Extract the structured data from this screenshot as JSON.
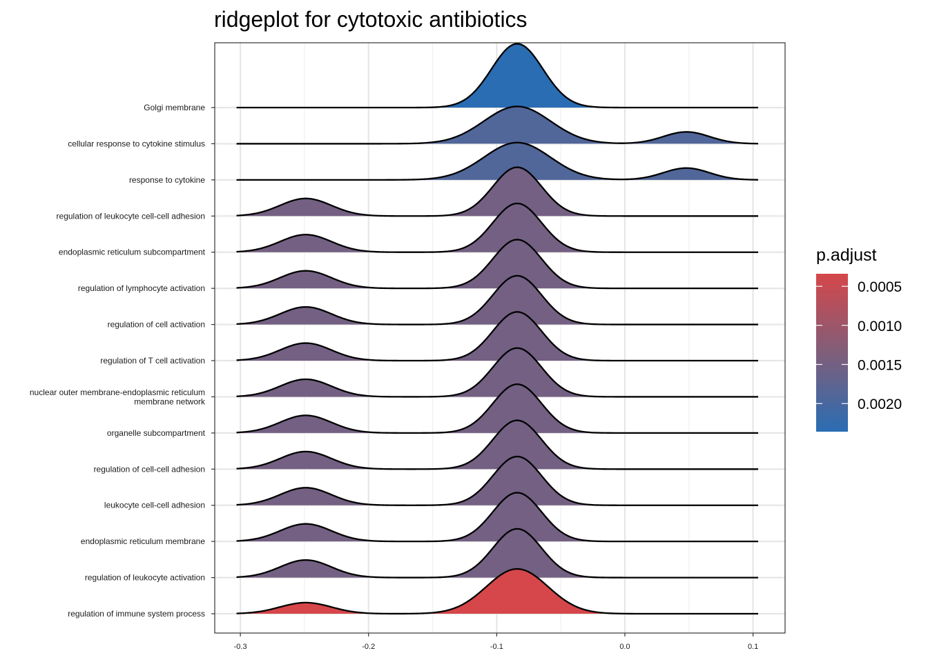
{
  "chart_data": {
    "type": "ridgeline",
    "title": "ridgeplot for cytotoxic antibiotics",
    "xlabel": "",
    "ylabel": "",
    "xlim": [
      -0.32,
      0.125
    ],
    "x_ticks": [
      "-0.3",
      "-0.2",
      "-0.1",
      "0.0",
      "0.1"
    ],
    "x_tick_values": [
      -0.3,
      -0.2,
      -0.1,
      0.0,
      0.1
    ],
    "density_range": [
      -0.303,
      0.104
    ],
    "grid": true,
    "legend": {
      "title": "p.adjust",
      "placement": "right",
      "ticks": [
        "0.0005",
        "0.0010",
        "0.0015",
        "0.0020"
      ],
      "tick_values": [
        0.0005,
        0.001,
        0.0015,
        0.002
      ],
      "range": [
        0.00034,
        0.00236
      ],
      "color_low": "#d5474a",
      "color_high": "#2a6db3"
    },
    "series": [
      {
        "name": "Golgi membrane",
        "p_adjust": 0.00236,
        "peaks": [
          {
            "mean": -0.084,
            "sd": 0.02,
            "height": 1.78
          }
        ]
      },
      {
        "name": "cellular response to cytokine stimulus",
        "p_adjust": 0.0019,
        "peaks": [
          {
            "mean": -0.084,
            "sd": 0.026,
            "height": 1.04
          },
          {
            "mean": 0.048,
            "sd": 0.018,
            "height": 0.33
          }
        ]
      },
      {
        "name": "response to cytokine",
        "p_adjust": 0.0019,
        "peaks": [
          {
            "mean": -0.084,
            "sd": 0.026,
            "height": 1.04
          },
          {
            "mean": 0.048,
            "sd": 0.018,
            "height": 0.33
          }
        ]
      },
      {
        "name": "regulation of leukocyte cell-cell adhesion",
        "p_adjust": 0.0015,
        "peaks": [
          {
            "mean": -0.249,
            "sd": 0.02,
            "height": 0.49
          },
          {
            "mean": -0.084,
            "sd": 0.019,
            "height": 1.36
          }
        ]
      },
      {
        "name": "endoplasmic reticulum subcompartment",
        "p_adjust": 0.0015,
        "peaks": [
          {
            "mean": -0.249,
            "sd": 0.02,
            "height": 0.49
          },
          {
            "mean": -0.084,
            "sd": 0.019,
            "height": 1.36
          }
        ]
      },
      {
        "name": "regulation of lymphocyte activation",
        "p_adjust": 0.0015,
        "peaks": [
          {
            "mean": -0.249,
            "sd": 0.02,
            "height": 0.49
          },
          {
            "mean": -0.084,
            "sd": 0.019,
            "height": 1.36
          }
        ]
      },
      {
        "name": "regulation of cell activation",
        "p_adjust": 0.0015,
        "peaks": [
          {
            "mean": -0.249,
            "sd": 0.02,
            "height": 0.49
          },
          {
            "mean": -0.084,
            "sd": 0.019,
            "height": 1.36
          }
        ]
      },
      {
        "name": "regulation of T cell activation",
        "p_adjust": 0.0015,
        "peaks": [
          {
            "mean": -0.249,
            "sd": 0.02,
            "height": 0.49
          },
          {
            "mean": -0.084,
            "sd": 0.019,
            "height": 1.36
          }
        ]
      },
      {
        "name": "nuclear outer membrane-endoplasmic reticulum membrane network",
        "label_lines": [
          "nuclear outer membrane-endoplasmic reticulum",
          "membrane network"
        ],
        "p_adjust": 0.0015,
        "peaks": [
          {
            "mean": -0.249,
            "sd": 0.02,
            "height": 0.49
          },
          {
            "mean": -0.084,
            "sd": 0.019,
            "height": 1.36
          }
        ]
      },
      {
        "name": "organelle subcompartment",
        "p_adjust": 0.0015,
        "peaks": [
          {
            "mean": -0.249,
            "sd": 0.02,
            "height": 0.49
          },
          {
            "mean": -0.084,
            "sd": 0.019,
            "height": 1.36
          }
        ]
      },
      {
        "name": "regulation of cell-cell adhesion",
        "p_adjust": 0.0015,
        "peaks": [
          {
            "mean": -0.249,
            "sd": 0.02,
            "height": 0.49
          },
          {
            "mean": -0.084,
            "sd": 0.019,
            "height": 1.36
          }
        ]
      },
      {
        "name": "leukocyte cell-cell adhesion",
        "p_adjust": 0.0015,
        "peaks": [
          {
            "mean": -0.249,
            "sd": 0.02,
            "height": 0.49
          },
          {
            "mean": -0.084,
            "sd": 0.019,
            "height": 1.36
          }
        ]
      },
      {
        "name": "endoplasmic reticulum membrane",
        "p_adjust": 0.0015,
        "peaks": [
          {
            "mean": -0.249,
            "sd": 0.02,
            "height": 0.49
          },
          {
            "mean": -0.084,
            "sd": 0.019,
            "height": 1.36
          }
        ]
      },
      {
        "name": "regulation of leukocyte activation",
        "p_adjust": 0.0015,
        "peaks": [
          {
            "mean": -0.249,
            "sd": 0.02,
            "height": 0.49
          },
          {
            "mean": -0.084,
            "sd": 0.019,
            "height": 1.36
          }
        ]
      },
      {
        "name": "regulation of immune system process",
        "p_adjust": 0.00034,
        "peaks": [
          {
            "mean": -0.249,
            "sd": 0.02,
            "height": 0.31
          },
          {
            "mean": -0.084,
            "sd": 0.024,
            "height": 1.25
          }
        ]
      }
    ]
  }
}
